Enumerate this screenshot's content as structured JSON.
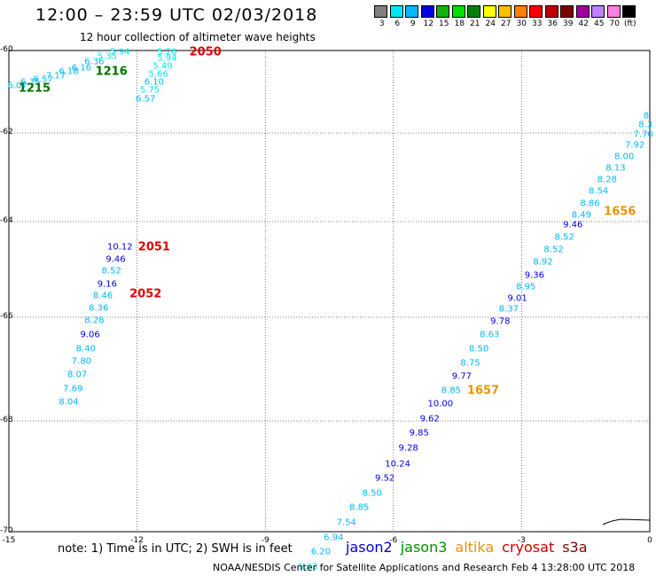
{
  "header": {
    "title": "12:00 – 23:59 UTC 02/03/2018",
    "subtitle": "12 hour collection of altimeter wave heights"
  },
  "legend": {
    "labels": [
      "3",
      "6",
      "9",
      "12",
      "15",
      "18",
      "21",
      "24",
      "27",
      "30",
      "33",
      "36",
      "39",
      "42",
      "45",
      "70",
      "(ft)"
    ],
    "colors": [
      "#808080",
      "#00e8f0",
      "#00b8ff",
      "#0000e0",
      "#10b010",
      "#00e000",
      "#008000",
      "#ffff00",
      "#ffc000",
      "#ff8000",
      "#ff0000",
      "#c00000",
      "#800000",
      "#a000a0",
      "#c080ff",
      "#ff80e0",
      "#000000"
    ]
  },
  "axes": {
    "lat_labels": [
      "-60",
      "-62",
      "-64",
      "-66",
      "-68",
      "-70"
    ],
    "lon_labels": [
      "-15",
      "-12",
      "-9",
      "-6",
      "-3",
      "0"
    ]
  },
  "tracks": [
    {
      "series": "upper-left",
      "points": [
        {
          "lat": -60.85,
          "lon": -14.8,
          "v": "6.07"
        },
        {
          "lat": -60.78,
          "lon": -14.5,
          "v": "6.35"
        },
        {
          "lat": -60.7,
          "lon": -14.2,
          "v": "6.57"
        },
        {
          "lat": -60.62,
          "lon": -13.9,
          "v": "7.17"
        },
        {
          "lat": -60.52,
          "lon": -13.6,
          "v": "6.18"
        },
        {
          "lat": -60.42,
          "lon": -13.3,
          "v": "6.16"
        },
        {
          "lat": -60.28,
          "lon": -13.0,
          "v": "6.36"
        },
        {
          "lat": -60.15,
          "lon": -12.7,
          "v": "5.35"
        },
        {
          "lat": -60.04,
          "lon": -12.4,
          "v": "5.94"
        }
      ]
    },
    {
      "series": "upper-center",
      "points": [
        {
          "lat": -60.04,
          "lon": -11.3,
          "v": "5.26"
        },
        {
          "lat": -60.19,
          "lon": -11.3,
          "v": "5.94"
        },
        {
          "lat": -60.38,
          "lon": -11.4,
          "v": "5.49"
        },
        {
          "lat": -60.58,
          "lon": -11.5,
          "v": "5.66"
        },
        {
          "lat": -60.77,
          "lon": -11.6,
          "v": "6.10"
        },
        {
          "lat": -60.97,
          "lon": -11.7,
          "v": "5.75"
        },
        {
          "lat": -61.18,
          "lon": -11.8,
          "v": "6.57"
        }
      ]
    },
    {
      "series": "left",
      "points": [
        {
          "lat": -64.54,
          "lon": -12.4,
          "v": "10.12"
        },
        {
          "lat": -64.79,
          "lon": -12.5,
          "v": "9.46"
        },
        {
          "lat": -65.04,
          "lon": -12.6,
          "v": "8.52"
        },
        {
          "lat": -65.31,
          "lon": -12.7,
          "v": "9.16"
        },
        {
          "lat": -65.56,
          "lon": -12.8,
          "v": "8.46"
        },
        {
          "lat": -65.82,
          "lon": -12.9,
          "v": "8.36"
        },
        {
          "lat": -66.07,
          "lon": -13.0,
          "v": "8.28"
        },
        {
          "lat": -66.34,
          "lon": -13.1,
          "v": "9.06"
        },
        {
          "lat": -66.61,
          "lon": -13.2,
          "v": "8.40"
        },
        {
          "lat": -66.86,
          "lon": -13.3,
          "v": "7.80"
        },
        {
          "lat": -67.11,
          "lon": -13.4,
          "v": "8.07"
        },
        {
          "lat": -67.38,
          "lon": -13.5,
          "v": "7.69"
        },
        {
          "lat": -67.64,
          "lon": -13.6,
          "v": "8.04"
        }
      ]
    },
    {
      "series": "right",
      "points": [
        {
          "lat": -61.6,
          "lon": -0.05,
          "v": "8."
        },
        {
          "lat": -61.81,
          "lon": -0.1,
          "v": "8.3"
        },
        {
          "lat": -62.04,
          "lon": -0.15,
          "v": "7.70"
        },
        {
          "lat": -62.28,
          "lon": -0.35,
          "v": "7.92"
        },
        {
          "lat": -62.53,
          "lon": -0.6,
          "v": "8.00"
        },
        {
          "lat": -62.79,
          "lon": -0.8,
          "v": "8.13"
        },
        {
          "lat": -63.06,
          "lon": -1.0,
          "v": "8.28"
        },
        {
          "lat": -63.32,
          "lon": -1.2,
          "v": "8.54"
        },
        {
          "lat": -63.59,
          "lon": -1.4,
          "v": "8.86"
        },
        {
          "lat": -63.85,
          "lon": -1.6,
          "v": "8.49"
        },
        {
          "lat": -64.08,
          "lon": -1.8,
          "v": "9.46"
        },
        {
          "lat": -64.33,
          "lon": -2.0,
          "v": "8.52"
        },
        {
          "lat": -64.6,
          "lon": -2.25,
          "v": "8.52"
        },
        {
          "lat": -64.86,
          "lon": -2.5,
          "v": "8.92"
        },
        {
          "lat": -65.13,
          "lon": -2.7,
          "v": "9.36"
        },
        {
          "lat": -65.37,
          "lon": -2.9,
          "v": "8.95"
        },
        {
          "lat": -65.61,
          "lon": -3.1,
          "v": "9.01"
        },
        {
          "lat": -65.84,
          "lon": -3.3,
          "v": "8.37"
        },
        {
          "lat": -66.09,
          "lon": -3.5,
          "v": "9.78"
        },
        {
          "lat": -66.35,
          "lon": -3.75,
          "v": "8.63"
        },
        {
          "lat": -66.62,
          "lon": -4.0,
          "v": "8.50"
        },
        {
          "lat": -66.89,
          "lon": -4.2,
          "v": "8.75"
        },
        {
          "lat": -67.15,
          "lon": -4.4,
          "v": "9.77"
        },
        {
          "lat": -67.42,
          "lon": -4.65,
          "v": "8.85"
        },
        {
          "lat": -67.68,
          "lon": -4.9,
          "v": "10.00"
        },
        {
          "lat": -67.96,
          "lon": -5.15,
          "v": "9.62"
        },
        {
          "lat": -68.22,
          "lon": -5.4,
          "v": "9.85"
        },
        {
          "lat": -68.5,
          "lon": -5.65,
          "v": "9.28"
        },
        {
          "lat": -68.78,
          "lon": -5.9,
          "v": "10.24"
        },
        {
          "lat": -69.04,
          "lon": -6.2,
          "v": "9.52"
        },
        {
          "lat": -69.31,
          "lon": -6.5,
          "v": "8.50"
        },
        {
          "lat": -69.56,
          "lon": -6.8,
          "v": "8.85"
        },
        {
          "lat": -69.84,
          "lon": -7.1,
          "v": "7.54"
        },
        {
          "lat": -70.12,
          "lon": -7.4,
          "v": "6.94"
        },
        {
          "lat": -70.37,
          "lon": -7.7,
          "v": "6.20"
        },
        {
          "lat": -70.64,
          "lon": -8.0,
          "v": "5.93"
        }
      ]
    }
  ],
  "times": [
    {
      "lat": -60.04,
      "lon": -10.4,
      "v": "2050",
      "color": "#e00000"
    },
    {
      "lat": -60.52,
      "lon": -12.6,
      "v": "1216",
      "color": "#007000"
    },
    {
      "lat": -60.92,
      "lon": -14.4,
      "v": "1215",
      "color": "#007000"
    },
    {
      "lat": -64.54,
      "lon": -11.6,
      "v": "2051",
      "color": "#e00000"
    },
    {
      "lat": -65.52,
      "lon": -11.8,
      "v": "2052",
      "color": "#e00000"
    },
    {
      "lat": -63.78,
      "lon": -0.7,
      "v": "1656",
      "color": "#f09000"
    },
    {
      "lat": -67.42,
      "lon": -3.9,
      "v": "1657",
      "color": "#f09000"
    }
  ],
  "footer": {
    "note": "note: 1) Time is in UTC; 2) SWH is in feet",
    "satellites": [
      {
        "name": "jason2",
        "color": "#0000d0"
      },
      {
        "name": "jason3",
        "color": "#009000"
      },
      {
        "name": "altika",
        "color": "#f09000"
      },
      {
        "name": "cryosat",
        "color": "#d00000"
      },
      {
        "name": "s3a",
        "color": "#800000"
      }
    ],
    "credit": "NOAA/NESDIS Center for Satellite Applications and Research   Feb  4 13:28:00 UTC 2018"
  }
}
